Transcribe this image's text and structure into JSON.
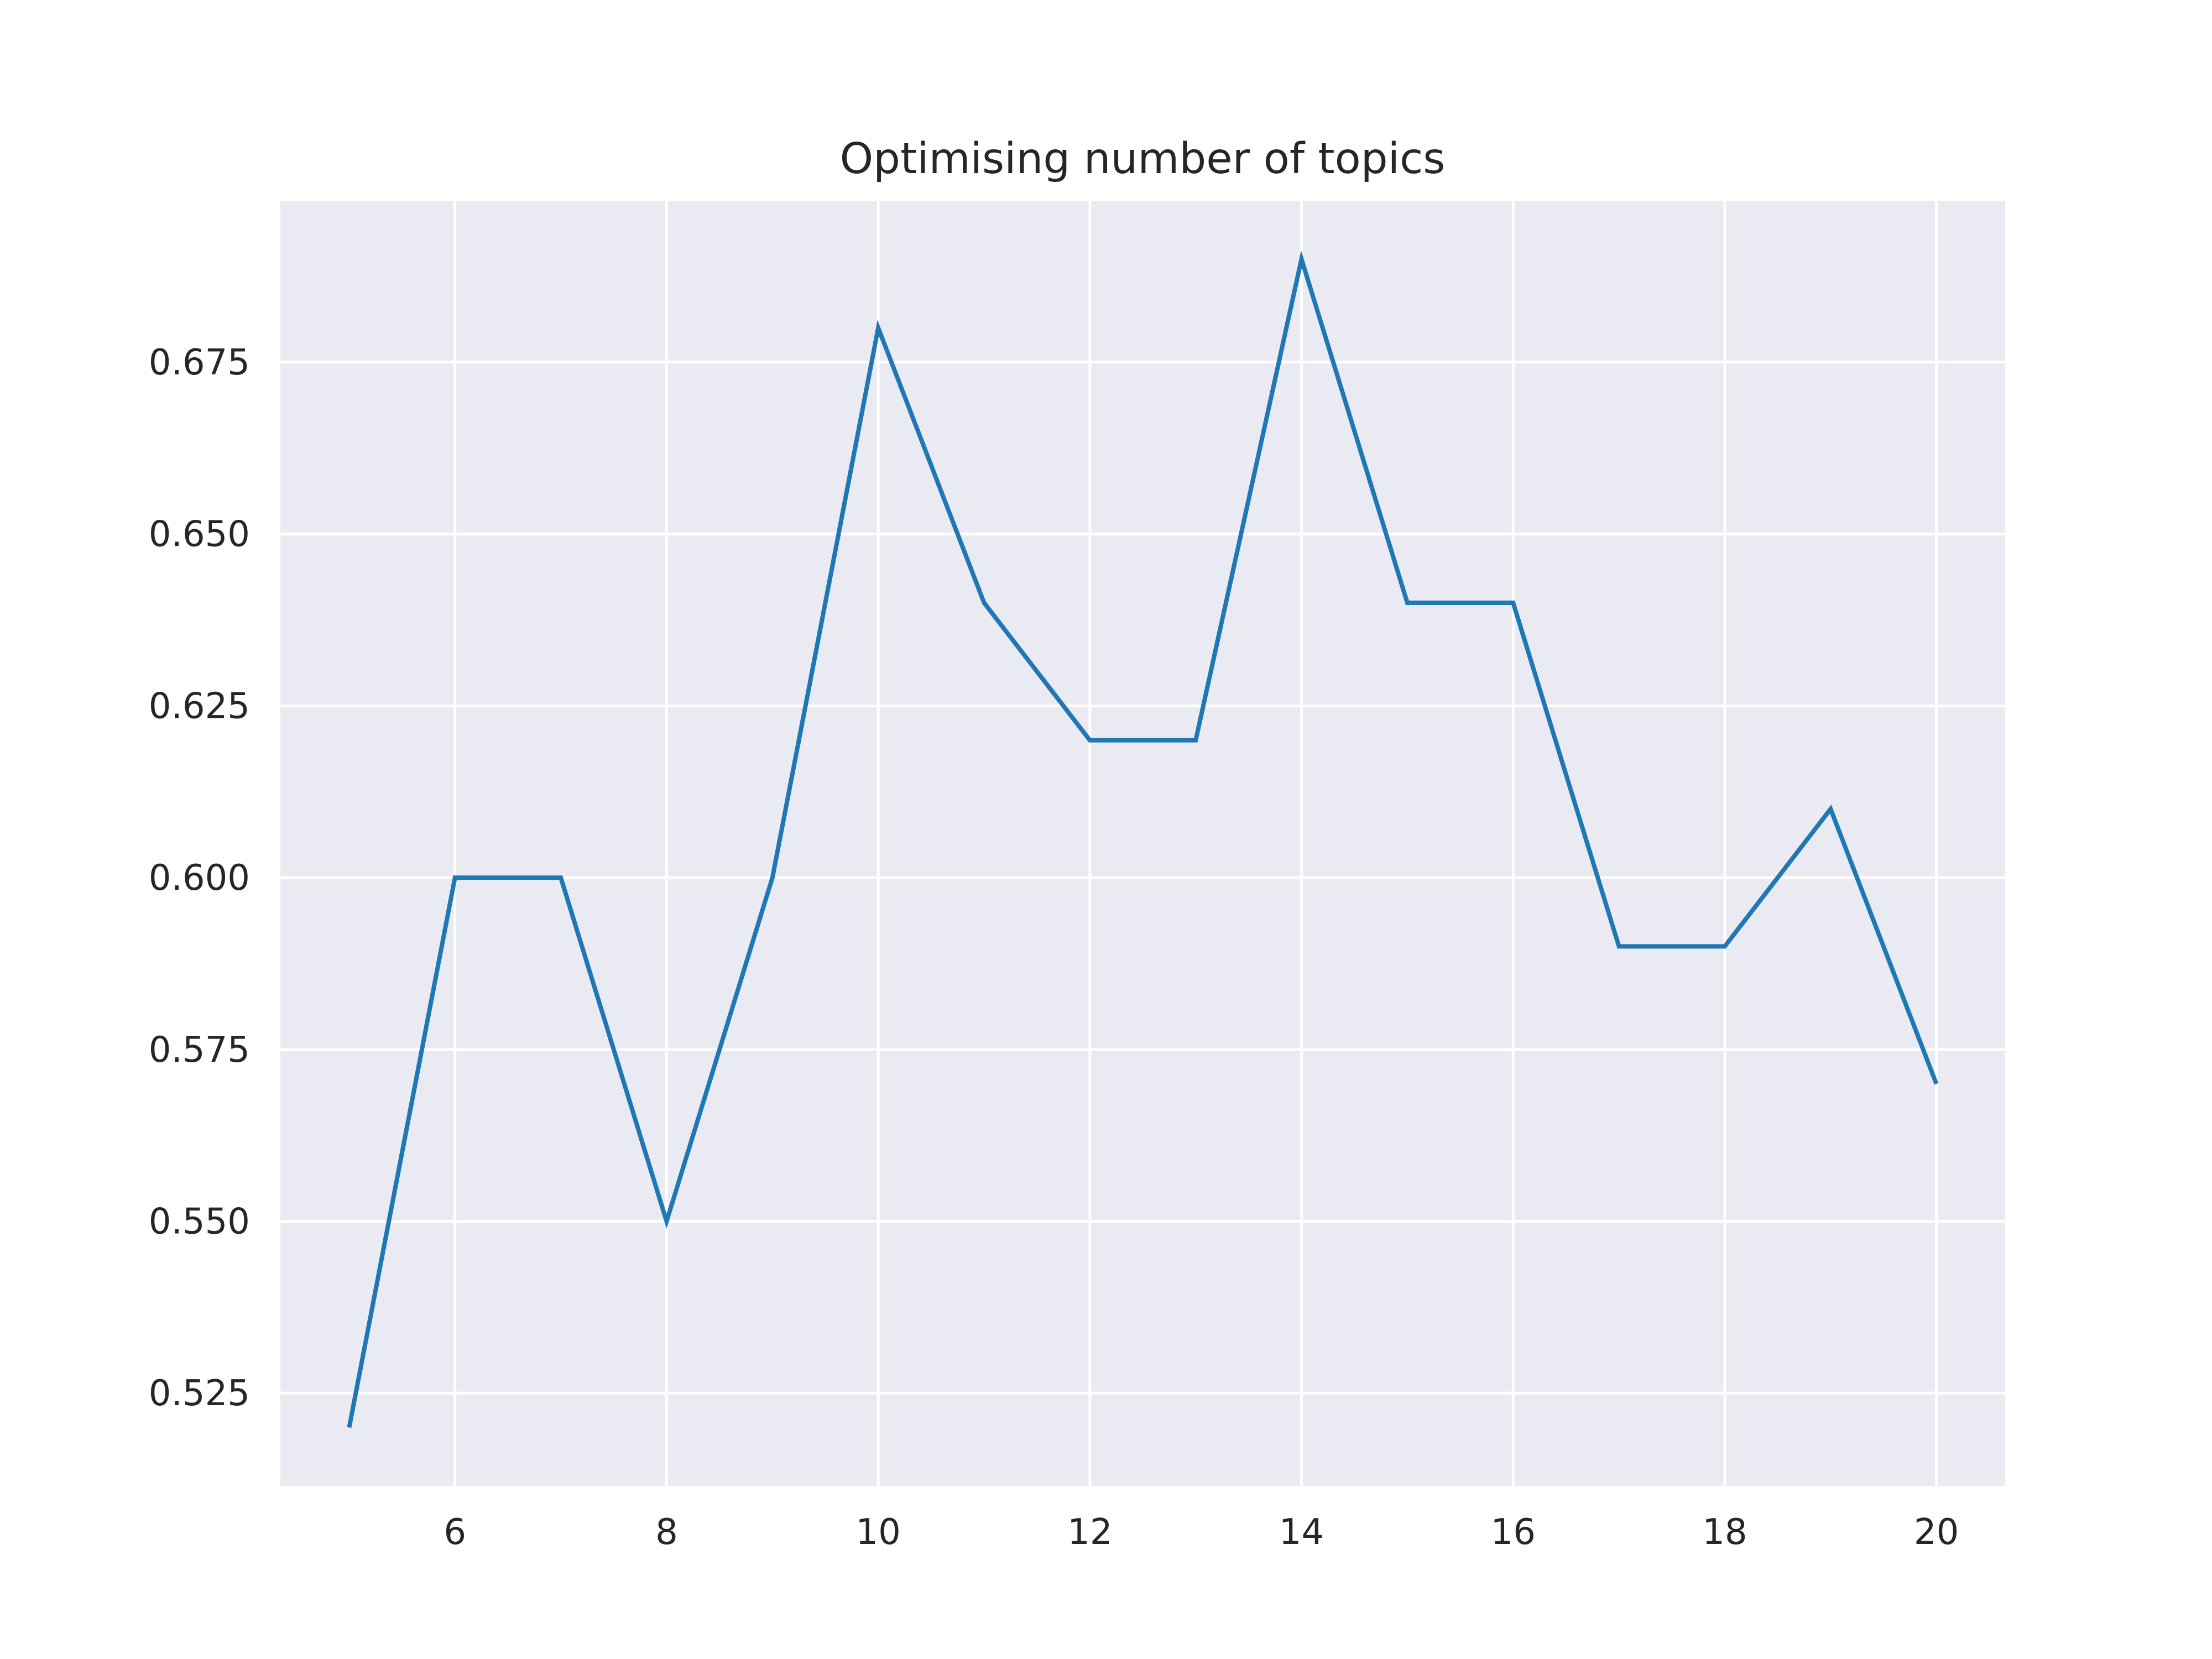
{
  "chart_data": {
    "type": "line",
    "title": "Optimising number of topics",
    "xlabel": "",
    "ylabel": "",
    "x": [
      5,
      6,
      7,
      8,
      9,
      10,
      11,
      12,
      13,
      14,
      15,
      16,
      17,
      18,
      19,
      20
    ],
    "series": [
      {
        "values": [
          0.52,
          0.6,
          0.6,
          0.55,
          0.6,
          0.68,
          0.64,
          0.62,
          0.62,
          0.69,
          0.64,
          0.64,
          0.59,
          0.59,
          0.61,
          0.57
        ]
      }
    ],
    "xlim": [
      4.35,
      20.65
    ],
    "ylim": [
      0.5115,
      0.6985
    ],
    "xticks": [
      6,
      8,
      10,
      12,
      14,
      16,
      18,
      20
    ],
    "xtick_labels": [
      "6",
      "8",
      "10",
      "12",
      "14",
      "16",
      "18",
      "20"
    ],
    "yticks": [
      0.525,
      0.55,
      0.575,
      0.6,
      0.625,
      0.65,
      0.675
    ],
    "ytick_labels": [
      "0.525",
      "0.550",
      "0.575",
      "0.600",
      "0.625",
      "0.650",
      "0.675"
    ],
    "grid": true,
    "colors": {
      "plot_background": "#eaeaf2",
      "grid": "#ffffff",
      "series": "#1f77b4",
      "text": "#262626"
    }
  }
}
